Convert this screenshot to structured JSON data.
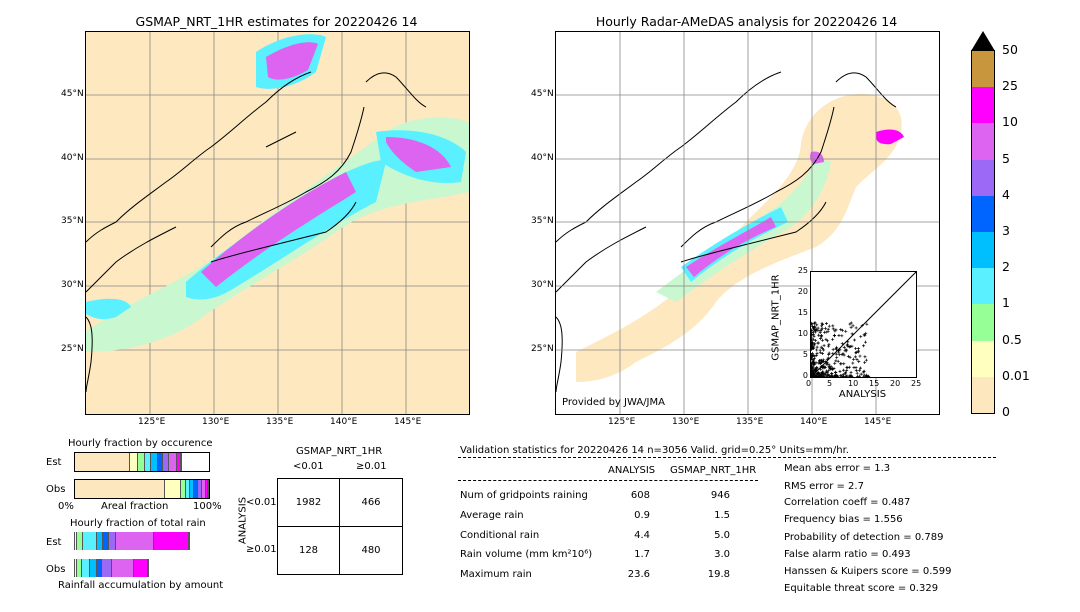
{
  "left_map": {
    "title": "GSMAP_NRT_1HR estimates for 20220426 14",
    "lat_labels": [
      "45°N",
      "40°N",
      "35°N",
      "30°N",
      "25°N"
    ],
    "lon_labels": [
      "125°E",
      "130°E",
      "135°E",
      "140°E",
      "145°E"
    ]
  },
  "right_map": {
    "title": "Hourly Radar-AMeDAS analysis for 20220426 14",
    "lat_labels": [
      "45°N",
      "40°N",
      "35°N",
      "30°N",
      "25°N"
    ],
    "lon_labels": [
      "125°E",
      "130°E",
      "135°E",
      "140°E",
      "145°E"
    ],
    "credit": "Provided by JWA/JMA"
  },
  "colorbar": {
    "levels": [
      "50",
      "25",
      "10",
      "5",
      "4",
      "3",
      "2",
      "1",
      "0.5",
      "0.01",
      "0"
    ],
    "colors": [
      "#c8963c",
      "#ff00ff",
      "#dc64f0",
      "#9b69f5",
      "#0064ff",
      "#00bfff",
      "#5af0ff",
      "#96ff96",
      "#ffffc0",
      "#fce7be"
    ]
  },
  "chart_data": [
    {
      "type": "scatter",
      "title": "",
      "xlabel": "ANALYSIS",
      "ylabel": "GSMAP_NRT_1HR",
      "xlim": [
        0,
        25
      ],
      "ylim": [
        0,
        25
      ],
      "x_ticks": [
        "0",
        "5",
        "10",
        "15",
        "20",
        "25"
      ],
      "y_ticks": [
        "0",
        "5",
        "10",
        "15",
        "20",
        "25"
      ],
      "marker": "+",
      "diagonal": true
    },
    {
      "type": "bar",
      "title": "Hourly fraction by occurence",
      "orientation": "horizontal-stacked",
      "categories": [
        "Est",
        "Obs"
      ],
      "xlabel": "Areal fraction",
      "x_tick_labels": [
        "0%",
        "100%"
      ],
      "colors": [
        "#fce7be",
        "#ffffc0",
        "#96ff96",
        "#5af0ff",
        "#00bfff",
        "#0064ff",
        "#9b69f5",
        "#dc64f0",
        "#ff00ff",
        "#c8963c"
      ],
      "series_values": {
        "Est": [
          0.41,
          0.06,
          0.05,
          0.05,
          0.05,
          0.04,
          0.04,
          0.06,
          0.03,
          0.01
        ],
        "Obs": [
          0.67,
          0.12,
          0.04,
          0.03,
          0.03,
          0.03,
          0.03,
          0.03,
          0.01,
          0.01
        ]
      }
    },
    {
      "type": "bar",
      "title": "Hourly fraction of total rain",
      "orientation": "horizontal-stacked",
      "categories": [
        "Est",
        "Obs"
      ],
      "xlabel": "Rainfall accumulation by amount",
      "colors": [
        "#fce7be",
        "#ffffc0",
        "#96ff96",
        "#5af0ff",
        "#00bfff",
        "#0064ff",
        "#9b69f5",
        "#dc64f0",
        "#ff00ff",
        "#c8963c"
      ],
      "series_values": {
        "Est": [
          0.01,
          0.01,
          0.05,
          0.1,
          0.05,
          0.04,
          0.05,
          0.29,
          0.26,
          0.0
        ],
        "Obs": [
          0.01,
          0.01,
          0.04,
          0.06,
          0.05,
          0.04,
          0.07,
          0.17,
          0.1,
          0.0
        ]
      }
    }
  ],
  "contingency": {
    "title": "GSMAP_NRT_1HR",
    "col_labels": [
      "<0.01",
      "≥0.01"
    ],
    "row_labels": [
      "<0.01",
      "≥0.01"
    ],
    "row_axis": "ANALYSIS",
    "cells": [
      [
        "1982",
        "466"
      ],
      [
        "128",
        "480"
      ]
    ]
  },
  "stats": {
    "header": "Validation statistics for 20220426 14  n=3056 Valid. grid=0.25° Units=mm/hr.",
    "col_analysis": "ANALYSIS",
    "col_gsmap": "GSMAP_NRT_1HR",
    "rows": [
      {
        "label": "Num of gridpoints raining",
        "a": "608",
        "g": "946"
      },
      {
        "label": "Average rain",
        "a": "0.9",
        "g": "1.5"
      },
      {
        "label": "Conditional rain",
        "a": "4.4",
        "g": "5.0"
      },
      {
        "label": "Rain volume (mm km²10⁶)",
        "a": "1.7",
        "g": "3.0"
      },
      {
        "label": "Maximum rain",
        "a": "23.6",
        "g": "19.8"
      }
    ],
    "scores": [
      "Mean abs error =    1.3",
      "RMS error =    2.7",
      "Correlation coeff =  0.487",
      "Frequency bias =  1.556",
      "Probability of detection =  0.789",
      "False alarm ratio =  0.493",
      "Hanssen & Kuipers score =  0.599",
      "Equitable threat score =  0.329"
    ]
  }
}
